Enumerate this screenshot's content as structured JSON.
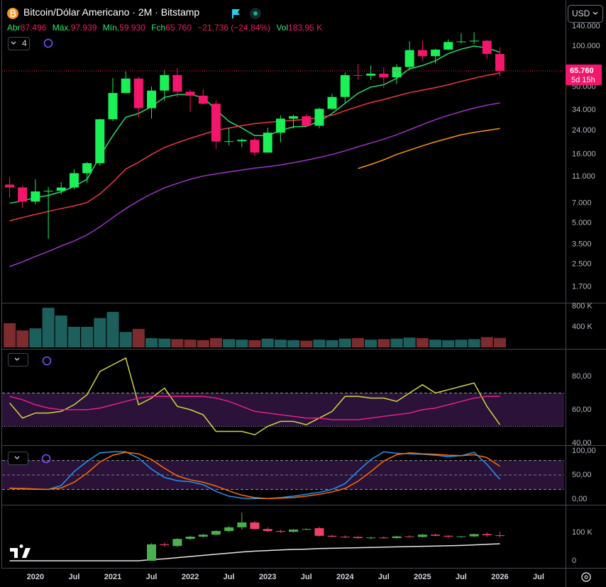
{
  "header": {
    "symbol_title": "Bitcoin/Dólar Americano · 2M · Bitstamp",
    "open_label": "Abr",
    "open": "87.496",
    "high_label": "Máx.",
    "high": "97.939",
    "low_label": "Mín.",
    "low": "59.930",
    "close_label": "Fch",
    "close": "65.760",
    "change": "−21.736 (−24,84%)",
    "volume_label": "Vol",
    "volume": "183,95 K",
    "currency": "USD",
    "indicator_count": "4",
    "last_price": "65.760",
    "countdown": "5d 15h"
  },
  "chart_data": [
    {
      "type": "candlestick",
      "log_scale": true,
      "up_color": "#1bf057",
      "down_color": "#f2176b",
      "x": [
        2019.667,
        2019.833,
        2020,
        2020.167,
        2020.333,
        2020.5,
        2020.667,
        2020.833,
        2021,
        2021.167,
        2021.333,
        2021.5,
        2021.667,
        2021.833,
        2022,
        2022.167,
        2022.333,
        2022.5,
        2022.667,
        2022.833,
        2023,
        2023.167,
        2023.333,
        2023.5,
        2023.667,
        2023.833,
        2024,
        2024.167,
        2024.333,
        2024.5,
        2024.667,
        2024.833,
        2025,
        2025.167,
        2025.333,
        2025.5,
        2025.667,
        2025.833,
        2026
      ],
      "xlim": [
        2019.57,
        2026.83
      ],
      "xticks": [
        2020,
        {
          "value": 2020.5,
          "label": "Jul"
        },
        2021,
        {
          "value": 2021.5,
          "label": "Jul"
        },
        2022,
        {
          "value": 2022.5,
          "label": "Jul"
        },
        2023,
        {
          "value": 2023.5,
          "label": "Jul"
        },
        2024,
        {
          "value": 2024.5,
          "label": "Jul"
        },
        2025,
        {
          "value": 2025.5,
          "label": "Jul"
        },
        2026,
        {
          "value": 2026.5,
          "label": "Jul"
        }
      ],
      "open": [
        9600,
        9150,
        7200,
        8550,
        8650,
        9140,
        11650,
        13800,
        29000,
        45200,
        57700,
        35000,
        47100,
        61300,
        46200,
        43200,
        37700,
        19900,
        20000,
        20500,
        16500,
        23100,
        29300,
        30500,
        26000,
        34600,
        42300,
        61200,
        60600,
        62700,
        58900,
        70200,
        93400,
        84300,
        94200,
        107100,
        108200,
        109500,
        87496
      ],
      "high": [
        10900,
        9500,
        10500,
        9200,
        10000,
        12470,
        14100,
        29300,
        58300,
        64900,
        59500,
        50500,
        67000,
        69000,
        48000,
        48200,
        40000,
        25200,
        21000,
        21400,
        25200,
        31000,
        31400,
        31800,
        35200,
        44700,
        64000,
        73800,
        72000,
        70000,
        73600,
        108300,
        109400,
        95700,
        112000,
        124400,
        126200,
        111000,
        97939
      ],
      "low": [
        7700,
        6500,
        6900,
        3850,
        8100,
        8900,
        9850,
        13200,
        28100,
        45000,
        30000,
        29300,
        39600,
        42000,
        32900,
        37200,
        17600,
        18700,
        18100,
        15500,
        16500,
        19600,
        24800,
        25300,
        24900,
        34100,
        38500,
        56500,
        56500,
        49000,
        52500,
        66800,
        78200,
        74500,
        93300,
        105100,
        103500,
        80500,
        59930
      ],
      "close": [
        9150,
        7200,
        8550,
        8650,
        9140,
        11650,
        13800,
        29000,
        45200,
        57700,
        35000,
        47100,
        61300,
        46200,
        43200,
        37700,
        19900,
        20000,
        20500,
        16500,
        23100,
        29300,
        30500,
        26000,
        34600,
        42300,
        61200,
        60600,
        62700,
        58900,
        70200,
        93400,
        84300,
        94200,
        107100,
        108200,
        109500,
        87500,
        65760
      ],
      "ylim": [
        1302,
        218000
      ],
      "yticks": [
        {
          "value": 140000,
          "label": "140.000"
        },
        {
          "value": 100000,
          "label": "100.000"
        },
        {
          "value": 50000,
          "label": "50.000"
        },
        {
          "value": 34000,
          "label": "34.000"
        },
        {
          "value": 24000,
          "label": "24.000"
        },
        {
          "value": 16000,
          "label": "16.000"
        },
        {
          "value": 11000,
          "label": "11.000"
        },
        {
          "value": 7000,
          "label": "7.000"
        },
        {
          "value": 5000,
          "label": "5.000"
        },
        {
          "value": 3500,
          "label": "3.500"
        },
        {
          "value": 2500,
          "label": "2.500"
        },
        {
          "value": 1700,
          "label": "1.700"
        }
      ],
      "series": [
        {
          "color": "#2bd96b",
          "values": [
            7000,
            7300,
            7700,
            8000,
            8500,
            9300,
            10500,
            15500,
            22000,
            30000,
            32000,
            36000,
            42000,
            44000,
            44000,
            42000,
            34000,
            28000,
            25000,
            22000,
            22000,
            24000,
            25500,
            25700,
            28000,
            32000,
            38000,
            45000,
            50000,
            52000,
            58000,
            68000,
            72000,
            78000,
            88000,
            95000,
            100000,
            97000,
            90000
          ]
        },
        {
          "color": "#f23645",
          "values": [
            5200,
            5500,
            5800,
            6100,
            6400,
            6700,
            7100,
            8200,
            10000,
            12500,
            14000,
            16000,
            18000,
            19500,
            21000,
            22500,
            24000,
            25000,
            26000,
            27000,
            27500,
            28000,
            28500,
            29000,
            30000,
            31000,
            33500,
            36000,
            38500,
            40500,
            43000,
            45500,
            47500,
            49500,
            52000,
            55000,
            58000,
            61000,
            63500
          ]
        },
        {
          "color": "#a033c7",
          "values": [
            2400,
            2600,
            2850,
            3100,
            3400,
            3700,
            4100,
            4700,
            5500,
            6400,
            7300,
            8200,
            9100,
            9800,
            10500,
            11100,
            11500,
            11900,
            12300,
            12700,
            13000,
            13400,
            13900,
            14500,
            15200,
            16000,
            17000,
            18200,
            19400,
            20700,
            22300,
            24300,
            26500,
            28800,
            31000,
            33000,
            35000,
            36800,
            38200
          ]
        },
        {
          "color": "#ff9800",
          "values": [
            null,
            null,
            null,
            null,
            null,
            null,
            null,
            null,
            null,
            null,
            null,
            null,
            null,
            null,
            null,
            null,
            null,
            null,
            null,
            null,
            null,
            null,
            null,
            null,
            null,
            null,
            null,
            12600,
            13500,
            14600,
            16000,
            17200,
            18500,
            19800,
            21000,
            22300,
            23200,
            24000,
            24800
          ]
        }
      ]
    },
    {
      "type": "bar",
      "up_color": "#1d5f5c",
      "down_color": "#7c2b2e",
      "values": [
        470000,
        330000,
        370000,
        770000,
        620000,
        400000,
        400000,
        570000,
        690000,
        300000,
        360000,
        180000,
        170000,
        160000,
        150000,
        140000,
        180000,
        160000,
        150000,
        140000,
        170000,
        150000,
        140000,
        130000,
        150000,
        140000,
        170000,
        180000,
        150000,
        160000,
        170000,
        190000,
        180000,
        150000,
        140000,
        150000,
        160000,
        200000,
        183950
      ],
      "ylim": [
        0,
        855000
      ],
      "yticks": [
        {
          "value": 800000,
          "label": "800 K"
        },
        {
          "value": 400000,
          "label": "400 K"
        }
      ]
    },
    {
      "type": "line",
      "ylim": [
        38.7,
        95.7
      ],
      "yticks": [
        {
          "value": 80,
          "label": "80,00"
        },
        {
          "value": 60,
          "label": "60,00"
        },
        {
          "value": 40,
          "label": "40,00"
        }
      ],
      "band": [
        50,
        70
      ],
      "band_color": "#2a1239",
      "series": [
        {
          "color": "#d4d43c",
          "values": [
            64,
            55,
            58,
            58,
            59,
            63,
            69,
            83,
            87,
            91,
            63,
            67,
            73,
            62,
            60,
            57,
            47,
            47,
            47,
            45,
            50,
            53,
            53,
            51,
            55,
            59,
            68,
            68,
            67,
            67,
            65,
            70,
            75,
            70,
            72,
            74,
            76,
            62,
            51
          ]
        },
        {
          "color": "#e91e8c",
          "values": [
            68,
            66,
            63,
            61,
            60,
            60,
            60,
            61,
            63,
            65,
            67,
            68,
            68,
            68,
            68,
            68,
            67,
            65,
            62,
            59,
            58,
            57,
            56,
            55,
            55,
            54,
            54,
            54,
            55,
            56,
            57,
            58,
            60,
            61,
            63,
            65,
            67,
            68,
            68
          ]
        }
      ]
    },
    {
      "type": "line",
      "ylim": [
        -11.8,
        108.8
      ],
      "yticks": [
        {
          "value": 100,
          "label": "100,00"
        },
        {
          "value": 50,
          "label": "50,00"
        },
        {
          "value": 0,
          "label": "0,00"
        }
      ],
      "band": [
        20,
        80
      ],
      "midline": 50,
      "band_color": "#2a1239",
      "series": [
        {
          "color": "#2196f3",
          "values": [
            23,
            21,
            20,
            20,
            28,
            57,
            78,
            96,
            98,
            98,
            85,
            62,
            45,
            38,
            36,
            30,
            16,
            6,
            2,
            1,
            1,
            3,
            6,
            10,
            14,
            20,
            32,
            58,
            82,
            98,
            95,
            94,
            93,
            91,
            88,
            90,
            97,
            72,
            41
          ]
        },
        {
          "color": "#ff6d00",
          "values": [
            22,
            22,
            21,
            20,
            23,
            35,
            54,
            77,
            91,
            97,
            94,
            82,
            64,
            48,
            40,
            35,
            27,
            17,
            8,
            3,
            1,
            2,
            3,
            6,
            10,
            15,
            22,
            37,
            57,
            79,
            92,
            96,
            94,
            93,
            91,
            90,
            92,
            86,
            68
          ]
        }
      ]
    },
    {
      "type": "candlestick",
      "up_color": "#4caf50",
      "down_color": "#f23f6a",
      "open": [
        null,
        null,
        null,
        null,
        null,
        null,
        null,
        null,
        null,
        null,
        null,
        0,
        58000,
        52000,
        77000,
        85000,
        92000,
        105000,
        118000,
        135000,
        112000,
        105000,
        102000,
        110000,
        115000,
        88000,
        85000,
        84000,
        80000,
        82000,
        80000,
        86000,
        84000,
        92000,
        88000,
        85000,
        86000,
        94000,
        90000
      ],
      "high": [
        null,
        null,
        null,
        null,
        null,
        null,
        null,
        null,
        null,
        null,
        null,
        62000,
        64000,
        80000,
        88000,
        95000,
        108000,
        122000,
        170000,
        140000,
        118000,
        110000,
        112000,
        114000,
        120000,
        92000,
        90000,
        86000,
        84000,
        86000,
        88000,
        90000,
        95000,
        96000,
        90000,
        88000,
        96000,
        100000,
        102000
      ],
      "low": [
        null,
        null,
        null,
        null,
        null,
        null,
        null,
        null,
        null,
        null,
        null,
        0,
        50000,
        48000,
        72000,
        82000,
        90000,
        100000,
        110000,
        110000,
        100000,
        98000,
        100000,
        108000,
        85000,
        82000,
        80000,
        78000,
        76000,
        78000,
        78000,
        82000,
        82000,
        86000,
        80000,
        82000,
        84000,
        84000,
        82000
      ],
      "close": [
        null,
        null,
        null,
        null,
        null,
        null,
        null,
        null,
        null,
        null,
        null,
        58000,
        55000,
        77000,
        85000,
        92000,
        105000,
        118000,
        135000,
        112000,
        105000,
        102000,
        110000,
        112000,
        88000,
        85000,
        84000,
        80000,
        82000,
        80000,
        86000,
        84000,
        92000,
        88000,
        85000,
        86000,
        94000,
        90000,
        88000
      ],
      "ylim": [
        -27500,
        192500
      ],
      "yticks": [
        {
          "value": 100000,
          "label": "100 K"
        },
        0
      ],
      "series": [
        {
          "color": "#e6e6e6",
          "values": [
            0,
            0,
            0,
            0,
            0,
            0,
            0,
            0,
            0,
            0,
            0,
            4000,
            7000,
            11000,
            15000,
            19000,
            23000,
            27000,
            31000,
            34000,
            36000,
            38000,
            40000,
            41000,
            43000,
            44000,
            45000,
            46000,
            47000,
            48000,
            49000,
            50000,
            51000,
            52000,
            53000,
            54000,
            56000,
            58000,
            60000
          ]
        }
      ]
    }
  ]
}
